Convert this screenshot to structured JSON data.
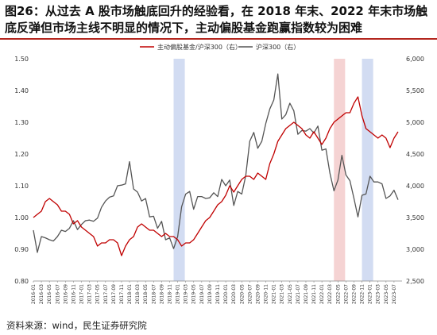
{
  "title": "图26：从过去 A 股市场触底回升的经验看，在 2018 年末、2022 年末市场触底反弹但市场主线不明显的情况下，主动偏股基金跑赢指数较为困难",
  "source": "资料来源：wind，民生证券研究院",
  "chart_data": {
    "type": "line",
    "legend_placement": "top-center",
    "x_tick_labels": [
      "2016-01",
      "2016-03",
      "2016-05",
      "2016-07",
      "2016-09",
      "2016-11",
      "2017-01",
      "2017-03",
      "2017-05",
      "2017-07",
      "2017-09",
      "2017-11",
      "2018-01",
      "2018-03",
      "2018-05",
      "2018-07",
      "2018-09",
      "2018-11",
      "2019-01",
      "2019-03",
      "2019-05",
      "2019-07",
      "2019-09",
      "2019-11",
      "2020-01",
      "2020-03",
      "2020-05",
      "2020-07",
      "2020-09",
      "2020-11",
      "2021-01",
      "2021-03",
      "2021-05",
      "2021-07",
      "2021-09",
      "2021-11",
      "2022-01",
      "2022-03",
      "2022-05",
      "2022-07",
      "2022-09",
      "2022-11",
      "2023-01",
      "2023-03",
      "2023-05",
      "2023-07"
    ],
    "y_left": {
      "min": 0.8,
      "max": 1.5,
      "ticks": [
        "0.80",
        "0.90",
        "1.00",
        "1.10",
        "1.20",
        "1.30",
        "1.40",
        "1.50"
      ]
    },
    "y_right": {
      "min": 2500,
      "max": 6000,
      "ticks": [
        "2,500",
        "3,000",
        "3,500",
        "4,000",
        "4,500",
        "5,000",
        "5,500",
        "6,000"
      ]
    },
    "shaded_periods": [
      {
        "start": "2018-12",
        "end": "2019-02",
        "color": "#d2dcf2"
      },
      {
        "start": "2022-04",
        "end": "2022-06",
        "color": "#f5d3d3"
      },
      {
        "start": "2022-11",
        "end": "2023-01",
        "color": "#d2dcf2"
      }
    ],
    "series": [
      {
        "name": "主动偏股基金/沪深300（右）",
        "axis": "left",
        "color": "#c00000",
        "points": [
          [
            "2016-01",
            1.0
          ],
          [
            "2016-02",
            1.01
          ],
          [
            "2016-03",
            1.02
          ],
          [
            "2016-04",
            1.05
          ],
          [
            "2016-05",
            1.06
          ],
          [
            "2016-06",
            1.05
          ],
          [
            "2016-07",
            1.04
          ],
          [
            "2016-08",
            1.02
          ],
          [
            "2016-09",
            1.02
          ],
          [
            "2016-10",
            1.01
          ],
          [
            "2016-11",
            0.98
          ],
          [
            "2016-12",
            0.99
          ],
          [
            "2017-01",
            0.97
          ],
          [
            "2017-02",
            0.96
          ],
          [
            "2017-03",
            0.95
          ],
          [
            "2017-04",
            0.94
          ],
          [
            "2017-05",
            0.91
          ],
          [
            "2017-06",
            0.92
          ],
          [
            "2017-07",
            0.92
          ],
          [
            "2017-08",
            0.93
          ],
          [
            "2017-09",
            0.93
          ],
          [
            "2017-10",
            0.92
          ],
          [
            "2017-11",
            0.88
          ],
          [
            "2017-12",
            0.91
          ],
          [
            "2018-01",
            0.93
          ],
          [
            "2018-02",
            0.94
          ],
          [
            "2018-03",
            0.97
          ],
          [
            "2018-04",
            0.98
          ],
          [
            "2018-05",
            0.97
          ],
          [
            "2018-06",
            0.96
          ],
          [
            "2018-07",
            0.96
          ],
          [
            "2018-08",
            0.95
          ],
          [
            "2018-09",
            0.94
          ],
          [
            "2018-10",
            0.95
          ],
          [
            "2018-11",
            0.94
          ],
          [
            "2018-12",
            0.94
          ],
          [
            "2019-01",
            0.93
          ],
          [
            "2019-02",
            0.91
          ],
          [
            "2019-03",
            0.92
          ],
          [
            "2019-04",
            0.92
          ],
          [
            "2019-05",
            0.93
          ],
          [
            "2019-06",
            0.95
          ],
          [
            "2019-07",
            0.97
          ],
          [
            "2019-08",
            0.99
          ],
          [
            "2019-09",
            1.0
          ],
          [
            "2019-10",
            1.02
          ],
          [
            "2019-11",
            1.04
          ],
          [
            "2019-12",
            1.05
          ],
          [
            "2020-01",
            1.07
          ],
          [
            "2020-02",
            1.1
          ],
          [
            "2020-03",
            1.08
          ],
          [
            "2020-04",
            1.1
          ],
          [
            "2020-05",
            1.12
          ],
          [
            "2020-06",
            1.13
          ],
          [
            "2020-07",
            1.13
          ],
          [
            "2020-08",
            1.12
          ],
          [
            "2020-09",
            1.14
          ],
          [
            "2020-10",
            1.13
          ],
          [
            "2020-11",
            1.12
          ],
          [
            "2020-12",
            1.17
          ],
          [
            "2021-01",
            1.2
          ],
          [
            "2021-02",
            1.24
          ],
          [
            "2021-03",
            1.26
          ],
          [
            "2021-04",
            1.28
          ],
          [
            "2021-05",
            1.29
          ],
          [
            "2021-06",
            1.3
          ],
          [
            "2021-07",
            1.29
          ],
          [
            "2021-08",
            1.28
          ],
          [
            "2021-09",
            1.26
          ],
          [
            "2021-10",
            1.25
          ],
          [
            "2021-11",
            1.27
          ],
          [
            "2021-12",
            1.25
          ],
          [
            "2022-01",
            1.23
          ],
          [
            "2022-02",
            1.25
          ],
          [
            "2022-03",
            1.28
          ],
          [
            "2022-04",
            1.3
          ],
          [
            "2022-05",
            1.31
          ],
          [
            "2022-06",
            1.32
          ],
          [
            "2022-07",
            1.33
          ],
          [
            "2022-08",
            1.33
          ],
          [
            "2022-09",
            1.36
          ],
          [
            "2022-10",
            1.38
          ],
          [
            "2022-11",
            1.32
          ],
          [
            "2022-12",
            1.28
          ],
          [
            "2023-01",
            1.27
          ],
          [
            "2023-02",
            1.26
          ],
          [
            "2023-03",
            1.25
          ],
          [
            "2023-04",
            1.26
          ],
          [
            "2023-05",
            1.25
          ],
          [
            "2023-06",
            1.22
          ],
          [
            "2023-07",
            1.25
          ],
          [
            "2023-08",
            1.27
          ]
        ]
      },
      {
        "name": "沪深300（右）",
        "axis": "right",
        "color": "#555555",
        "points": [
          [
            "2016-01",
            3300
          ],
          [
            "2016-02",
            2950
          ],
          [
            "2016-03",
            3200
          ],
          [
            "2016-04",
            3180
          ],
          [
            "2016-05",
            3150
          ],
          [
            "2016-06",
            3130
          ],
          [
            "2016-07",
            3200
          ],
          [
            "2016-08",
            3300
          ],
          [
            "2016-09",
            3280
          ],
          [
            "2016-10",
            3330
          ],
          [
            "2016-11",
            3450
          ],
          [
            "2016-12",
            3310
          ],
          [
            "2017-01",
            3390
          ],
          [
            "2017-02",
            3450
          ],
          [
            "2017-03",
            3460
          ],
          [
            "2017-04",
            3440
          ],
          [
            "2017-05",
            3490
          ],
          [
            "2017-06",
            3660
          ],
          [
            "2017-07",
            3760
          ],
          [
            "2017-08",
            3820
          ],
          [
            "2017-09",
            3840
          ],
          [
            "2017-10",
            4000
          ],
          [
            "2017-11",
            4010
          ],
          [
            "2017-12",
            4030
          ],
          [
            "2018-01",
            4380
          ],
          [
            "2018-02",
            3950
          ],
          [
            "2018-03",
            3900
          ],
          [
            "2018-04",
            3760
          ],
          [
            "2018-05",
            3800
          ],
          [
            "2018-06",
            3510
          ],
          [
            "2018-07",
            3520
          ],
          [
            "2018-08",
            3330
          ],
          [
            "2018-09",
            3440
          ],
          [
            "2018-10",
            3150
          ],
          [
            "2018-11",
            3180
          ],
          [
            "2018-12",
            3010
          ],
          [
            "2019-01",
            3200
          ],
          [
            "2019-02",
            3670
          ],
          [
            "2019-03",
            3870
          ],
          [
            "2019-04",
            3910
          ],
          [
            "2019-05",
            3630
          ],
          [
            "2019-06",
            3830
          ],
          [
            "2019-07",
            3830
          ],
          [
            "2019-08",
            3800
          ],
          [
            "2019-09",
            3810
          ],
          [
            "2019-10",
            3890
          ],
          [
            "2019-11",
            3830
          ],
          [
            "2019-12",
            4100
          ],
          [
            "2020-01",
            4000
          ],
          [
            "2020-02",
            4090
          ],
          [
            "2020-03",
            3690
          ],
          [
            "2020-04",
            3910
          ],
          [
            "2020-05",
            3870
          ],
          [
            "2020-06",
            4160
          ],
          [
            "2020-07",
            4700
          ],
          [
            "2020-08",
            4840
          ],
          [
            "2020-09",
            4590
          ],
          [
            "2020-10",
            4700
          ],
          [
            "2020-11",
            4980
          ],
          [
            "2020-12",
            5210
          ],
          [
            "2021-01",
            5350
          ],
          [
            "2021-02",
            5760
          ],
          [
            "2021-03",
            5050
          ],
          [
            "2021-04",
            5120
          ],
          [
            "2021-05",
            5300
          ],
          [
            "2021-06",
            5180
          ],
          [
            "2021-07",
            4810
          ],
          [
            "2021-08",
            4870
          ],
          [
            "2021-09",
            4860
          ],
          [
            "2021-10",
            4900
          ],
          [
            "2021-11",
            4830
          ],
          [
            "2021-12",
            4940
          ],
          [
            "2022-01",
            4560
          ],
          [
            "2022-02",
            4580
          ],
          [
            "2022-03",
            4200
          ],
          [
            "2022-04",
            3920
          ],
          [
            "2022-05",
            4090
          ],
          [
            "2022-06",
            4480
          ],
          [
            "2022-07",
            4170
          ],
          [
            "2022-08",
            4080
          ],
          [
            "2022-09",
            3800
          ],
          [
            "2022-10",
            3510
          ],
          [
            "2022-11",
            3850
          ],
          [
            "2022-12",
            3870
          ],
          [
            "2023-01",
            4150
          ],
          [
            "2023-02",
            4060
          ],
          [
            "2023-03",
            4060
          ],
          [
            "2023-04",
            4030
          ],
          [
            "2023-05",
            3800
          ],
          [
            "2023-06",
            3840
          ],
          [
            "2023-07",
            3930
          ],
          [
            "2023-08",
            3780
          ]
        ]
      }
    ]
  }
}
